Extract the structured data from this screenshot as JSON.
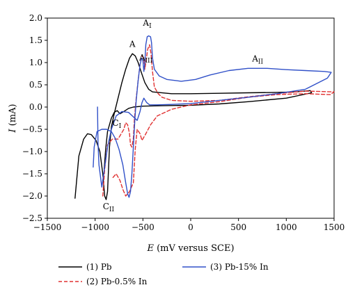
{
  "chart_data": {
    "type": "line",
    "xlabel": {
      "italic": "E",
      "rest": " (mV versus SCE)"
    },
    "ylabel": {
      "italic": "I",
      "rest": " (mA)"
    },
    "xlim": [
      -1500,
      1500
    ],
    "ylim": [
      -2.5,
      2.0
    ],
    "xticks": [
      -1500,
      -1000,
      -500,
      0,
      500,
      1000,
      1500
    ],
    "xtick_labels": [
      "−1500",
      "−1000",
      "−500",
      "0",
      "500",
      "1000",
      "1500"
    ],
    "yticks": [
      2.0,
      1.5,
      1.0,
      0.5,
      0.0,
      -0.5,
      -1.0,
      -1.5,
      -2.0,
      -2.5
    ],
    "ytick_labels": [
      "2.0",
      "1.5",
      "1.0",
      "0.5",
      "0.0",
      "−0.5",
      "−1.0",
      "−1.5",
      "−2.0",
      "−2.5"
    ],
    "legend_position": "below",
    "series": [
      {
        "name": "(1) Pb",
        "color": "#000000",
        "dash": "solid",
        "points": [
          [
            -1210,
            -2.05
          ],
          [
            -1170,
            -1.1
          ],
          [
            -1120,
            -0.72
          ],
          [
            -1080,
            -0.6
          ],
          [
            -1040,
            -0.62
          ],
          [
            -990,
            -0.75
          ],
          [
            -950,
            -1.0
          ],
          [
            -920,
            -1.5
          ],
          [
            -900,
            -2.0
          ],
          [
            -885,
            -2.08
          ],
          [
            -870,
            -1.9
          ],
          [
            -860,
            -1.4
          ],
          [
            -850,
            -0.9
          ],
          [
            -830,
            -0.45
          ],
          [
            -800,
            -0.15
          ],
          [
            -760,
            0.2
          ],
          [
            -720,
            0.55
          ],
          [
            -680,
            0.85
          ],
          [
            -640,
            1.1
          ],
          [
            -610,
            1.2
          ],
          [
            -580,
            1.15
          ],
          [
            -550,
            1.0
          ],
          [
            -520,
            0.8
          ],
          [
            -480,
            0.55
          ],
          [
            -440,
            0.4
          ],
          [
            -400,
            0.34
          ],
          [
            -200,
            0.3
          ],
          [
            0,
            0.3
          ],
          [
            300,
            0.31
          ],
          [
            600,
            0.32
          ],
          [
            900,
            0.33
          ],
          [
            1100,
            0.34
          ],
          [
            1250,
            0.37
          ],
          [
            1265,
            0.32
          ],
          [
            1000,
            0.2
          ],
          [
            600,
            0.12
          ],
          [
            300,
            0.07
          ],
          [
            0,
            0.04
          ],
          [
            -300,
            0.03
          ],
          [
            -500,
            0.02
          ],
          [
            -600,
            0.0
          ],
          [
            -650,
            -0.03
          ],
          [
            -700,
            -0.1
          ],
          [
            -740,
            -0.15
          ],
          [
            -770,
            -0.08
          ],
          [
            -800,
            -0.12
          ],
          [
            -830,
            -0.25
          ],
          [
            -870,
            -0.55
          ],
          [
            -890,
            -0.95
          ],
          [
            -905,
            -1.4
          ]
        ]
      },
      {
        "name": "(2) Pb-0.5% In",
        "color": "#e03030",
        "dash": "dashed",
        "points": [
          [
            -920,
            -2.0
          ],
          [
            -900,
            -1.4
          ],
          [
            -870,
            -0.85
          ],
          [
            -820,
            -0.72
          ],
          [
            -760,
            -0.72
          ],
          [
            -700,
            -0.5
          ],
          [
            -680,
            -0.35
          ],
          [
            -660,
            -0.4
          ],
          [
            -640,
            -0.6
          ],
          [
            -630,
            -0.85
          ],
          [
            -615,
            -0.9
          ],
          [
            -600,
            -0.7
          ],
          [
            -590,
            -0.3
          ],
          [
            -570,
            0.2
          ],
          [
            -550,
            0.6
          ],
          [
            -530,
            0.95
          ],
          [
            -510,
            1.15
          ],
          [
            -490,
            1.1
          ],
          [
            -480,
            0.85
          ],
          [
            -470,
            1.0
          ],
          [
            -450,
            1.3
          ],
          [
            -430,
            1.4
          ],
          [
            -415,
            1.2
          ],
          [
            -400,
            0.8
          ],
          [
            -380,
            0.45
          ],
          [
            -340,
            0.3
          ],
          [
            -300,
            0.22
          ],
          [
            -200,
            0.15
          ],
          [
            0,
            0.13
          ],
          [
            300,
            0.15
          ],
          [
            600,
            0.23
          ],
          [
            900,
            0.3
          ],
          [
            1200,
            0.36
          ],
          [
            1500,
            0.34
          ],
          [
            1460,
            0.28
          ],
          [
            1200,
            0.3
          ],
          [
            900,
            0.28
          ],
          [
            600,
            0.22
          ],
          [
            300,
            0.12
          ],
          [
            0,
            0.05
          ],
          [
            -200,
            -0.05
          ],
          [
            -350,
            -0.2
          ],
          [
            -420,
            -0.4
          ],
          [
            -470,
            -0.6
          ],
          [
            -510,
            -0.75
          ],
          [
            -530,
            -0.6
          ],
          [
            -560,
            -0.5
          ],
          [
            -580,
            -0.95
          ],
          [
            -600,
            -1.7
          ],
          [
            -640,
            -1.9
          ],
          [
            -680,
            -2.0
          ],
          [
            -710,
            -1.85
          ],
          [
            -740,
            -1.65
          ],
          [
            -780,
            -1.5
          ],
          [
            -820,
            -1.6
          ]
        ]
      },
      {
        "name": "(3) Pb-15% In",
        "color": "#3050c8",
        "dash": "solid",
        "points": [
          [
            -1020,
            -1.35
          ],
          [
            -1010,
            -0.9
          ],
          [
            -980,
            -0.55
          ],
          [
            -930,
            -0.5
          ],
          [
            -880,
            -0.5
          ],
          [
            -830,
            -0.55
          ],
          [
            -790,
            -0.7
          ],
          [
            -750,
            -0.95
          ],
          [
            -710,
            -1.3
          ],
          [
            -680,
            -1.7
          ],
          [
            -660,
            -1.95
          ],
          [
            -645,
            -2.03
          ],
          [
            -630,
            -1.9
          ],
          [
            -615,
            -1.5
          ],
          [
            -600,
            -0.9
          ],
          [
            -585,
            -0.3
          ],
          [
            -570,
            0.15
          ],
          [
            -550,
            0.6
          ],
          [
            -530,
            0.95
          ],
          [
            -515,
            1.1
          ],
          [
            -500,
            1.05
          ],
          [
            -490,
            0.8
          ],
          [
            -480,
            1.0
          ],
          [
            -470,
            1.4
          ],
          [
            -455,
            1.58
          ],
          [
            -440,
            1.6
          ],
          [
            -420,
            1.58
          ],
          [
            -410,
            1.45
          ],
          [
            -400,
            1.1
          ],
          [
            -380,
            0.85
          ],
          [
            -330,
            0.7
          ],
          [
            -250,
            0.62
          ],
          [
            -100,
            0.58
          ],
          [
            50,
            0.62
          ],
          [
            200,
            0.72
          ],
          [
            400,
            0.82
          ],
          [
            600,
            0.87
          ],
          [
            800,
            0.87
          ],
          [
            1000,
            0.84
          ],
          [
            1200,
            0.82
          ],
          [
            1400,
            0.8
          ],
          [
            1470,
            0.78
          ],
          [
            1430,
            0.65
          ],
          [
            1200,
            0.4
          ],
          [
            900,
            0.3
          ],
          [
            600,
            0.22
          ],
          [
            300,
            0.15
          ],
          [
            0,
            0.08
          ],
          [
            -200,
            0.06
          ],
          [
            -350,
            0.05
          ],
          [
            -400,
            0.05
          ],
          [
            -430,
            0.05
          ],
          [
            -460,
            0.1
          ],
          [
            -490,
            0.2
          ],
          [
            -510,
            0.1
          ],
          [
            -530,
            -0.1
          ],
          [
            -560,
            -0.3
          ],
          [
            -600,
            -0.22
          ],
          [
            -650,
            -0.12
          ],
          [
            -720,
            -0.1
          ],
          [
            -780,
            -0.2
          ],
          [
            -830,
            -0.5
          ],
          [
            -870,
            -0.9
          ],
          [
            -900,
            -1.35
          ],
          [
            -930,
            -1.8
          ],
          [
            -960,
            -1.3
          ],
          [
            -970,
            -0.8
          ],
          [
            -975,
            0.0
          ]
        ]
      }
    ],
    "annotations": [
      {
        "main": "A",
        "sub": "I",
        "x": -455,
        "y": 1.83,
        "anchor": "middle"
      },
      {
        "main": "A",
        "sub": "",
        "x": -610,
        "y": 1.35,
        "anchor": "middle"
      },
      {
        "main": "A",
        "sub": "III",
        "x": -540,
        "y": 1.05,
        "anchor": "start"
      },
      {
        "main": "A",
        "sub": "II",
        "x": 700,
        "y": 1.02,
        "anchor": "middle"
      },
      {
        "main": "C",
        "sub": "I",
        "x": -820,
        "y": -0.42,
        "anchor": "start"
      },
      {
        "main": "C",
        "sub": "II",
        "x": -860,
        "y": -2.3,
        "anchor": "middle"
      }
    ]
  }
}
